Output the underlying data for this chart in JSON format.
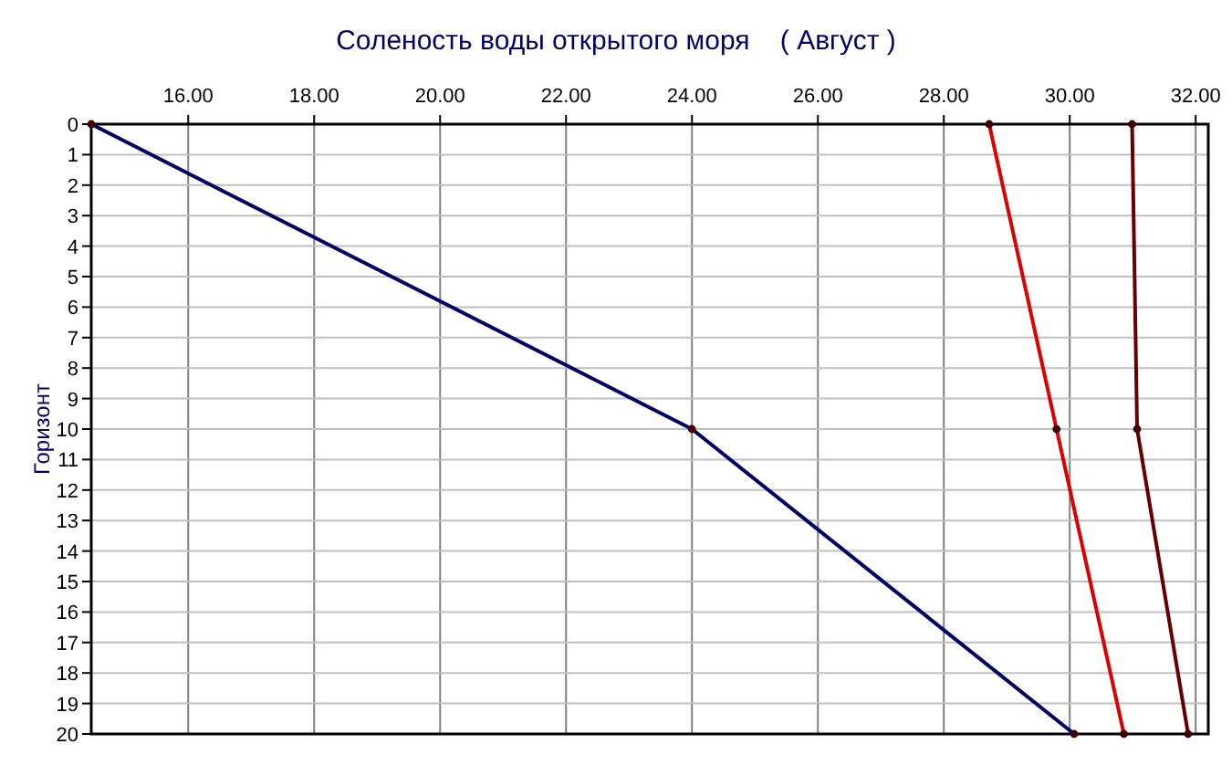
{
  "chart_data": {
    "type": "line",
    "title": "Соленость воды открытого моря    ( Август )",
    "ylabel": "Горизонт",
    "xlim": [
      14.46,
      32.2
    ],
    "xticks": [
      {
        "value": 16,
        "label": "16.00"
      },
      {
        "value": 18,
        "label": "18.00"
      },
      {
        "value": 20,
        "label": "20.00"
      },
      {
        "value": 22,
        "label": "22.00"
      },
      {
        "value": 24,
        "label": "24.00"
      },
      {
        "value": 26,
        "label": "26.00"
      },
      {
        "value": 28,
        "label": "28.00"
      },
      {
        "value": 30,
        "label": "30.00"
      },
      {
        "value": 32,
        "label": "32.00"
      }
    ],
    "ylim": [
      20,
      0
    ],
    "yticks": [
      0,
      1,
      2,
      3,
      4,
      5,
      6,
      7,
      8,
      9,
      10,
      11,
      12,
      13,
      14,
      15,
      16,
      17,
      18,
      19,
      20
    ],
    "grid": true,
    "marker": "circle",
    "line_style": "solid",
    "series": [
      {
        "color": "#000066",
        "x": [
          14.46,
          24.0,
          30.07
        ],
        "values": [
          0,
          10,
          20
        ]
      },
      {
        "color": "#dd0000",
        "x": [
          28.72,
          29.79,
          30.86
        ],
        "values": [
          0,
          10,
          20
        ]
      },
      {
        "color": "#660000",
        "x": [
          30.99,
          31.07,
          31.88
        ],
        "values": [
          0,
          10,
          20
        ]
      }
    ]
  }
}
